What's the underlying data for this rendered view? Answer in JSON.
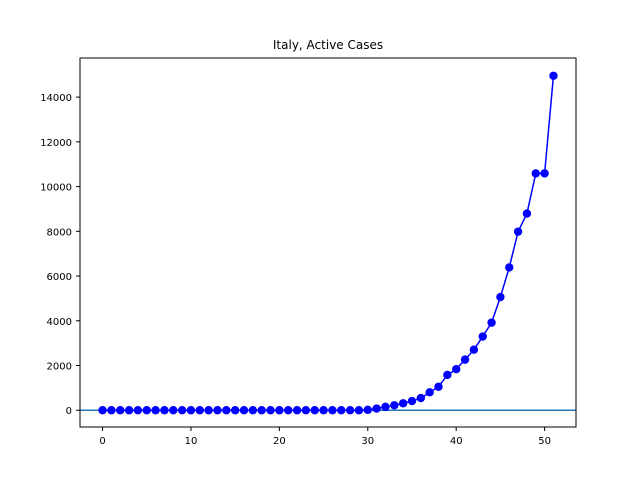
{
  "chart_data": {
    "type": "line",
    "title": "Italy, Active Cases",
    "xlabel": "",
    "ylabel": "",
    "xlim": [
      -2.55,
      53.55
    ],
    "ylim": [
      -750,
      15750
    ],
    "x_ticks": [
      0,
      10,
      20,
      30,
      40,
      50
    ],
    "y_ticks": [
      0,
      2000,
      4000,
      6000,
      8000,
      10000,
      12000,
      14000
    ],
    "grid": false,
    "legend": null,
    "reference_line": {
      "y": 0,
      "color": "#1f77b4"
    },
    "series": [
      {
        "color": "#0000ff",
        "marker": "circle",
        "x": [
          0,
          1,
          2,
          3,
          4,
          5,
          6,
          7,
          8,
          9,
          10,
          11,
          12,
          13,
          14,
          15,
          16,
          17,
          18,
          19,
          20,
          21,
          22,
          23,
          24,
          25,
          26,
          27,
          28,
          29,
          30,
          31,
          32,
          33,
          34,
          35,
          36,
          37,
          38,
          39,
          40,
          41,
          42,
          43,
          44,
          45,
          46,
          47,
          48,
          49,
          50,
          51
        ],
        "values": [
          0,
          0,
          0,
          0,
          0,
          0,
          0,
          0,
          0,
          0,
          0,
          0,
          0,
          0,
          0,
          0,
          0,
          0,
          0,
          0,
          0,
          0,
          0,
          0,
          0,
          0,
          0,
          0,
          0,
          0,
          17,
          76,
          150,
          221,
          311,
          409,
          543,
          800,
          1049,
          1577,
          1835,
          2263,
          2706,
          3296,
          3916,
          5061,
          6387,
          7985,
          8794,
          10590,
          10590,
          14955
        ]
      }
    ]
  }
}
